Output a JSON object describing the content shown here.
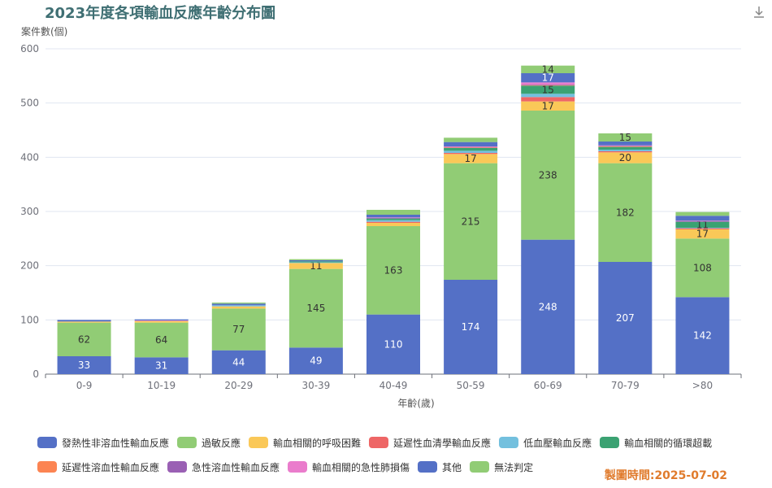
{
  "title": "2023年度各項輸血反應年齡分布圖",
  "footer": "製圖時間:2025-07-02",
  "chart_data": {
    "type": "bar",
    "stacked": true,
    "title": "2023年度各項輸血反應年齡分布圖",
    "ylabel": "案件數(個)",
    "xlabel": "年齡(歲)",
    "ylim": [
      0,
      600
    ],
    "yticks": [
      0,
      100,
      200,
      300,
      400,
      500,
      600
    ],
    "grid": true,
    "legend_position": "bottom",
    "categories": [
      "0-9",
      "10-19",
      "20-29",
      "30-39",
      "40-49",
      "50-59",
      "60-69",
      "70-79",
      ">80"
    ],
    "series": [
      {
        "name": "發熱性非溶血性輸血反應",
        "color": "#5470c6",
        "values": [
          33,
          31,
          44,
          49,
          110,
          174,
          248,
          207,
          142
        ]
      },
      {
        "name": "過敏反應",
        "color": "#91cc75",
        "values": [
          62,
          64,
          77,
          145,
          163,
          215,
          238,
          182,
          108
        ]
      },
      {
        "name": "輸血相關的呼吸困難",
        "color": "#fac858",
        "values": [
          2,
          3,
          4,
          11,
          6,
          17,
          17,
          20,
          17
        ]
      },
      {
        "name": "延遲性血清學輸血反應",
        "color": "#ee6666",
        "values": [
          0,
          0,
          0,
          0,
          2,
          2,
          8,
          2,
          2
        ]
      },
      {
        "name": "低血壓輸血反應",
        "color": "#73c0de",
        "values": [
          0,
          0,
          2,
          1,
          3,
          4,
          6,
          3,
          1
        ]
      },
      {
        "name": "輸血相關的循環超載",
        "color": "#3ba272",
        "values": [
          0,
          0,
          0,
          2,
          3,
          5,
          15,
          5,
          11
        ]
      },
      {
        "name": "延遲性溶血性輸血反應",
        "color": "#fc8452",
        "values": [
          0,
          0,
          0,
          0,
          0,
          1,
          1,
          1,
          0
        ]
      },
      {
        "name": "急性溶血性輸血反應",
        "color": "#9a60b4",
        "values": [
          0,
          0,
          0,
          0,
          1,
          1,
          1,
          1,
          1
        ]
      },
      {
        "name": "輸血相關的急性肺損傷",
        "color": "#ea7ccc",
        "values": [
          0,
          1,
          0,
          0,
          1,
          1,
          4,
          1,
          1
        ]
      },
      {
        "name": "其他",
        "color": "#5470c6",
        "values": [
          3,
          2,
          3,
          2,
          5,
          8,
          17,
          7,
          9
        ]
      },
      {
        "name": "無法判定",
        "color": "#91cc75",
        "values": [
          0,
          0,
          2,
          2,
          9,
          8,
          14,
          15,
          7
        ]
      }
    ],
    "data_label_min": 10
  }
}
